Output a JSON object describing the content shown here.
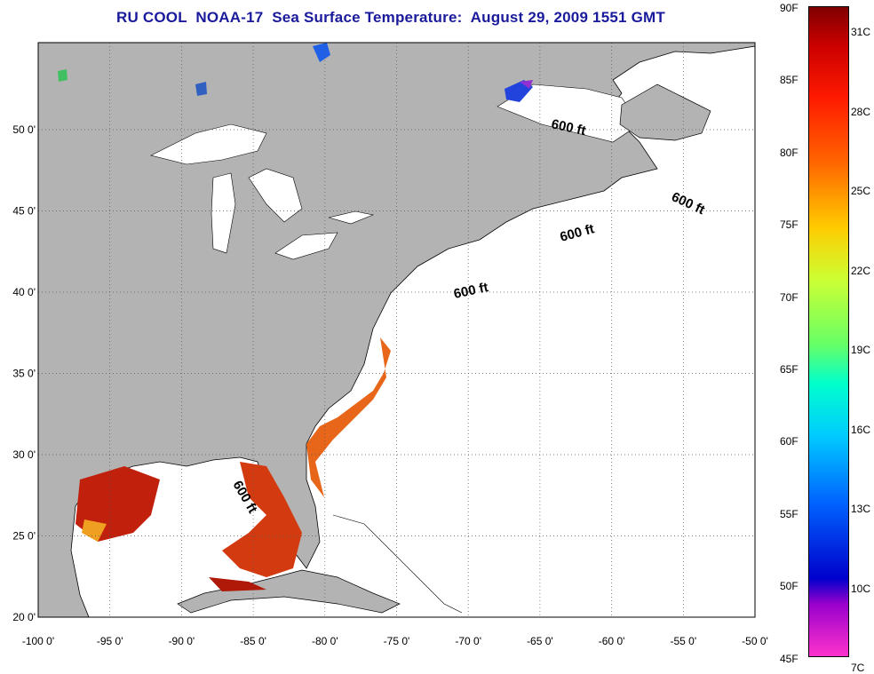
{
  "title": "RU COOL  NOAA-17  Sea Surface Temperature:  August 29, 2009 1551 GMT",
  "map": {
    "lat_ticks": [
      "20 0'",
      "25 0'",
      "30 0'",
      "35 0'",
      "40 0'",
      "45 0'",
      "50 0'"
    ],
    "lon_ticks": [
      "-100 0'",
      "-95 0'",
      "-90 0'",
      "-85 0'",
      "-80 0'",
      "-75 0'",
      "-70 0'",
      "-65 0'",
      "-60 0'",
      "-55 0'",
      "-50 0'"
    ],
    "isobath_labels": [
      "600 ft",
      "600 ft",
      "600 ft",
      "600 ft",
      "600 ft"
    ],
    "colors": {
      "land": "#b3b3b3",
      "ocean": "#ffffff",
      "warm": "#e85a10",
      "hot": "#c0180a",
      "cold": "#2050e0"
    }
  },
  "colorbar": {
    "fahrenheit": [
      "90F",
      "85F",
      "80F",
      "75F",
      "70F",
      "65F",
      "60F",
      "55F",
      "50F",
      "45F"
    ],
    "celsius": [
      "31C",
      "28C",
      "25C",
      "22C",
      "19C",
      "16C",
      "13C",
      "10C",
      "7C"
    ]
  }
}
